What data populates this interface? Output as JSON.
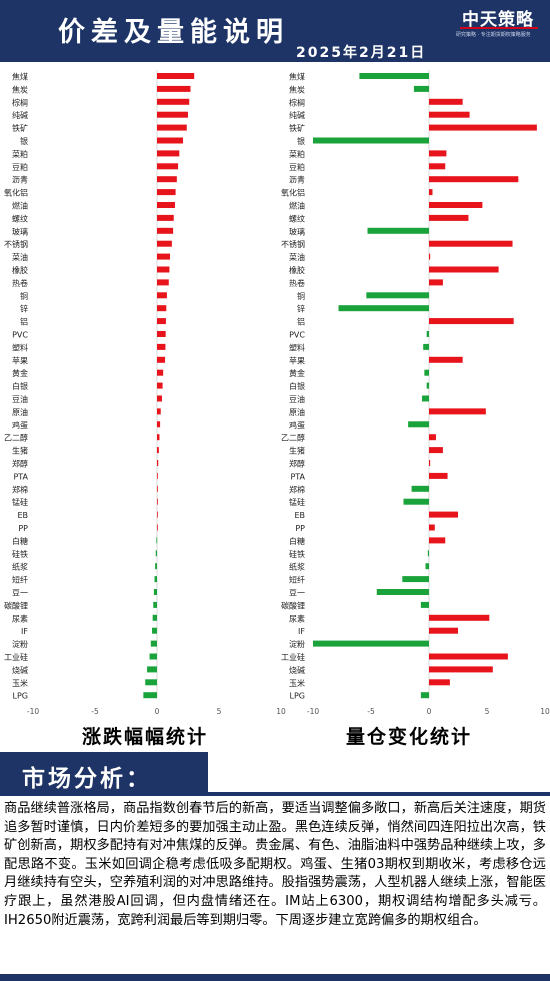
{
  "header": {
    "title": "价差及量能说明",
    "date": "2025年2月21日",
    "logo_text": "中天策略",
    "logo_sub": "研究策略 · 专注期货期权策略服务"
  },
  "section": {
    "title": "市场分析："
  },
  "analysis": {
    "text": "商品继续普涨格局，商品指数创春节后的新高，要适当调整偏多敞口，新高后关注速度，期货追多暂时谨慎，日内价差短多的要加强主动止盈。黑色连续反弹，悄然间四连阳拉出次高，铁矿创新高，期权多配持有对冲焦煤的反弹。贵金属、有色、油脂油料中强势品种继续上攻，多配思路不变。玉米如回调企稳考虑低吸多配期权。鸡蛋、生猪03期权到期收米，考虑移仓远月继续持有空头，空养殖利润的对冲思路维持。股指强势震荡，人型机器人继续上涨，智能医疗跟上，虽然港股AI回调，但内盘情绪还在。IM站上6300，期权调结构增配多头减亏。IH2650附近震荡，宽跨利润最后等到期归零。下周逐步建立宽跨偏多的期权组合。"
  },
  "colors": {
    "header_bg": "#1e3466",
    "up": "#e8141c",
    "down": "#1aa33a",
    "axis": "#999999"
  },
  "chart_data": [
    {
      "type": "bar",
      "orientation": "horizontal",
      "title": "涨跌幅幅统计",
      "categories": [
        "焦煤",
        "焦炭",
        "棕榈",
        "纯碱",
        "铁矿",
        "银",
        "菜粕",
        "豆粕",
        "沥青",
        "氧化铝",
        "燃油",
        "螺纹",
        "玻璃",
        "不锈钢",
        "菜油",
        "橡胶",
        "热卷",
        "铜",
        "锌",
        "铝",
        "PVC",
        "塑料",
        "苹果",
        "黄金",
        "白银",
        "豆油",
        "原油",
        "鸡蛋",
        "乙二醇",
        "生猪",
        "郑醇",
        "PTA",
        "郑棉",
        "锰硅",
        "EB",
        "PP",
        "白糖",
        "硅铁",
        "纸浆",
        "短纤",
        "豆一",
        "碳酸锂",
        "尿素",
        "IF",
        "淀粉",
        "工业硅",
        "烧碱",
        "玉米",
        "LPG"
      ],
      "values": [
        3.0,
        2.7,
        2.6,
        2.5,
        2.4,
        2.1,
        1.8,
        1.7,
        1.6,
        1.5,
        1.45,
        1.35,
        1.3,
        1.2,
        1.05,
        1.0,
        0.95,
        0.8,
        0.75,
        0.72,
        0.7,
        0.68,
        0.65,
        0.5,
        0.45,
        0.4,
        0.3,
        0.25,
        0.2,
        0.15,
        0.1,
        0.06,
        0.04,
        0.03,
        0.02,
        0.01,
        -0.05,
        -0.1,
        -0.15,
        -0.2,
        -0.25,
        -0.3,
        -0.35,
        -0.4,
        -0.5,
        -0.6,
        -0.8,
        -0.95,
        -1.1
      ],
      "xlim": [
        -10,
        10
      ],
      "xticks": [
        "-10",
        "-5",
        "0",
        "5",
        "10"
      ]
    },
    {
      "type": "bar",
      "orientation": "horizontal",
      "title": "量仓变化统计",
      "categories": [
        "焦煤",
        "焦炭",
        "棕榈",
        "纯碱",
        "铁矿",
        "银",
        "菜粕",
        "豆粕",
        "沥青",
        "氧化铝",
        "燃油",
        "螺纹",
        "玻璃",
        "不锈钢",
        "菜油",
        "橡胶",
        "热卷",
        "铜",
        "锌",
        "铝",
        "PVC",
        "塑料",
        "苹果",
        "黄金",
        "白银",
        "豆油",
        "原油",
        "鸡蛋",
        "乙二醇",
        "生猪",
        "郑醇",
        "PTA",
        "郑棉",
        "锰硅",
        "EB",
        "PP",
        "白糖",
        "硅铁",
        "纸浆",
        "短纤",
        "豆一",
        "碳酸锂",
        "尿素",
        "IF",
        "淀粉",
        "工业硅",
        "烧碱",
        "玉米",
        "LPG"
      ],
      "values": [
        -6.0,
        -1.3,
        2.9,
        3.5,
        9.3,
        -10.0,
        1.5,
        1.4,
        7.7,
        0.3,
        4.6,
        3.4,
        -5.3,
        7.2,
        0.1,
        6.0,
        1.2,
        -5.4,
        -7.8,
        7.3,
        -0.2,
        -0.5,
        2.9,
        -0.4,
        -0.2,
        -0.6,
        4.9,
        -1.8,
        0.6,
        1.2,
        0.1,
        1.6,
        -1.5,
        -2.2,
        2.5,
        0.5,
        1.4,
        -0.1,
        -0.3,
        -2.3,
        -4.5,
        -0.7,
        5.2,
        2.5,
        -10.0,
        6.8,
        5.5,
        1.8,
        -0.7
      ],
      "xlim": [
        -10,
        10
      ],
      "xticks": [
        "-10",
        "-5",
        "0",
        "5",
        "10"
      ]
    }
  ]
}
